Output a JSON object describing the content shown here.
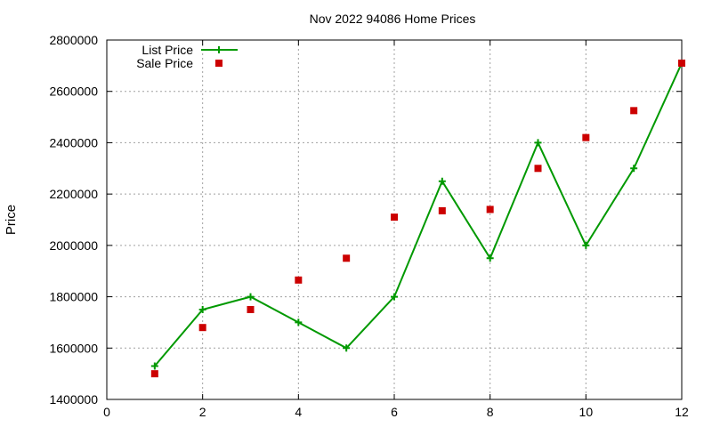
{
  "chart_data": {
    "type": "line",
    "title": "Nov 2022 94086 Home Prices",
    "xlabel": "",
    "ylabel": "Price",
    "xlim": [
      0,
      12
    ],
    "ylim": [
      1400000,
      2800000
    ],
    "xticks": [
      "0",
      "2",
      "4",
      "6",
      "8",
      "10",
      "12"
    ],
    "yticks": [
      "1400000",
      "1600000",
      "1800000",
      "2000000",
      "2200000",
      "2400000",
      "2600000",
      "2800000"
    ],
    "grid": true,
    "legend_position": "top-left",
    "series": [
      {
        "name": "List Price",
        "style": "line-plus",
        "color": "#009900",
        "x": [
          1,
          2,
          3,
          4,
          5,
          6,
          7,
          8,
          9,
          10,
          11,
          12
        ],
        "y": [
          1530000,
          1750000,
          1800000,
          1700000,
          1600000,
          1800000,
          2250000,
          1950000,
          2400000,
          2000000,
          2300000,
          2710000
        ]
      },
      {
        "name": "Sale Price",
        "style": "square",
        "color": "#cc0000",
        "x": [
          1,
          2,
          3,
          4,
          5,
          6,
          7,
          8,
          9,
          10,
          11,
          12
        ],
        "y": [
          1500000,
          1680000,
          1750000,
          1865000,
          1950000,
          2110000,
          2135000,
          2140000,
          2300000,
          2420000,
          2525000,
          2710000
        ]
      }
    ]
  }
}
